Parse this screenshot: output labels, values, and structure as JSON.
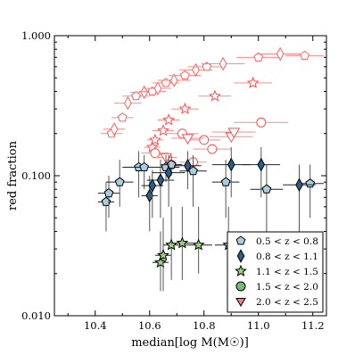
{
  "chart_data": {
    "type": "scatter",
    "title": "",
    "xlabel": "median[log M(M☉)]",
    "ylabel": "red fraction",
    "xlim": [
      10.25,
      11.25
    ],
    "ylim": [
      0.01,
      1.0
    ],
    "yscale": "log",
    "grid": false,
    "legend_position": "bottom-right",
    "x_ticks": [
      "10.4",
      "10.6",
      "10.8",
      "11.0",
      "11.2"
    ],
    "x_tick_values": [
      10.4,
      10.6,
      10.8,
      11.0,
      11.2
    ],
    "y_ticks": [
      "0.010",
      "0.100",
      "1.000"
    ],
    "y_tick_values": [
      0.01,
      0.1,
      1.0
    ],
    "background_series": {
      "color": "#ff6060",
      "points": [
        {
          "x": 10.46,
          "y": 0.2,
          "xerr": 0.04
        },
        {
          "x": 10.47,
          "y": 0.215,
          "xerr": 0.04
        },
        {
          "x": 10.5,
          "y": 0.26,
          "xerr": 0.04
        },
        {
          "x": 10.52,
          "y": 0.33,
          "xerr": 0.05
        },
        {
          "x": 10.55,
          "y": 0.37,
          "xerr": 0.05
        },
        {
          "x": 10.58,
          "y": 0.395,
          "xerr": 0.05
        },
        {
          "x": 10.61,
          "y": 0.4,
          "xerr": 0.05
        },
        {
          "x": 10.63,
          "y": 0.42,
          "xerr": 0.05
        },
        {
          "x": 10.66,
          "y": 0.46,
          "xerr": 0.05
        },
        {
          "x": 10.69,
          "y": 0.48,
          "xerr": 0.06
        },
        {
          "x": 10.73,
          "y": 0.52,
          "xerr": 0.06
        },
        {
          "x": 10.77,
          "y": 0.57,
          "xerr": 0.06
        },
        {
          "x": 10.81,
          "y": 0.6,
          "xerr": 0.07
        },
        {
          "x": 10.87,
          "y": 0.63,
          "xerr": 0.08
        },
        {
          "x": 11.0,
          "y": 0.7,
          "xerr": 0.08
        },
        {
          "x": 11.08,
          "y": 0.74,
          "xerr": 0.09
        },
        {
          "x": 11.17,
          "y": 0.72,
          "xerr": 0.07
        }
      ]
    },
    "series": [
      {
        "name": "0.5 < z < 0.8",
        "color": "#a8cce0",
        "marker": "pentagon",
        "points": [
          {
            "x": 10.44,
            "y": 0.065,
            "xerr": 0.03,
            "yerr_lo": 0.04,
            "yerr_hi": 0.09
          },
          {
            "x": 10.45,
            "y": 0.075,
            "xerr": 0.04,
            "yerr_lo": 0.05,
            "yerr_hi": 0.1
          },
          {
            "x": 10.49,
            "y": 0.09,
            "xerr": 0.05,
            "yerr_lo": 0.06,
            "yerr_hi": 0.13
          },
          {
            "x": 10.56,
            "y": 0.115,
            "xerr": 0.06,
            "yerr_lo": 0.07,
            "yerr_hi": 0.15
          },
          {
            "x": 10.58,
            "y": 0.115,
            "xerr": 0.04,
            "yerr_lo": 0.08,
            "yerr_hi": 0.14
          },
          {
            "x": 10.66,
            "y": 0.115,
            "xerr": 0.05,
            "yerr_lo": 0.09,
            "yerr_hi": 0.14
          },
          {
            "x": 10.68,
            "y": 0.12,
            "xerr": 0.04,
            "yerr_lo": 0.1,
            "yerr_hi": 0.14
          },
          {
            "x": 10.76,
            "y": 0.108,
            "xerr": 0.05,
            "yerr_lo": 0.06,
            "yerr_hi": 0.14
          },
          {
            "x": 10.88,
            "y": 0.09,
            "xerr": 0.05,
            "yerr_lo": 0.05,
            "yerr_hi": 0.13
          },
          {
            "x": 11.03,
            "y": 0.08,
            "xerr": 0.06,
            "yerr_lo": 0.04,
            "yerr_hi": 0.12
          },
          {
            "x": 11.19,
            "y": 0.088,
            "xerr": 0.05,
            "yerr_lo": 0.05,
            "yerr_hi": 0.12
          }
        ]
      },
      {
        "name": "0.8 < z < 1.1",
        "color": "#2a5f8a",
        "marker": "diamond",
        "points": [
          {
            "x": 10.6,
            "y": 0.072,
            "xerr": 0.03,
            "yerr_lo": 0.04,
            "yerr_hi": 0.1
          },
          {
            "x": 10.61,
            "y": 0.085,
            "xerr": 0.04,
            "yerr_lo": 0.05,
            "yerr_hi": 0.11
          },
          {
            "x": 10.64,
            "y": 0.093,
            "xerr": 0.05,
            "yerr_lo": 0.05,
            "yerr_hi": 0.13
          },
          {
            "x": 10.67,
            "y": 0.105,
            "xerr": 0.06,
            "yerr_lo": 0.06,
            "yerr_hi": 0.14
          },
          {
            "x": 10.74,
            "y": 0.118,
            "xerr": 0.05,
            "yerr_lo": 0.08,
            "yerr_hi": 0.15
          },
          {
            "x": 10.9,
            "y": 0.12,
            "xerr": 0.07,
            "yerr_lo": 0.07,
            "yerr_hi": 0.16
          },
          {
            "x": 11.01,
            "y": 0.12,
            "xerr": 0.07,
            "yerr_lo": 0.07,
            "yerr_hi": 0.16
          },
          {
            "x": 11.15,
            "y": 0.086,
            "xerr": 0.06,
            "yerr_lo": 0.04,
            "yerr_hi": 0.12
          }
        ]
      },
      {
        "name": "1.1 < z < 1.5",
        "color": "#9ad47a",
        "marker": "star",
        "points": [
          {
            "x": 10.64,
            "y": 0.024,
            "xerr": 0.03,
            "yerr_lo": 0.015,
            "yerr_hi": 0.04
          },
          {
            "x": 10.65,
            "y": 0.027,
            "xerr": 0.03,
            "yerr_lo": 0.015,
            "yerr_hi": 0.05
          },
          {
            "x": 10.68,
            "y": 0.032,
            "xerr": 0.03,
            "yerr_lo": 0.018,
            "yerr_hi": 0.06
          },
          {
            "x": 10.72,
            "y": 0.033,
            "xerr": 0.04,
            "yerr_lo": 0.018,
            "yerr_hi": 0.06
          },
          {
            "x": 10.78,
            "y": 0.032,
            "xerr": 0.05,
            "yerr_lo": 0.02,
            "yerr_hi": 0.06
          },
          {
            "x": 10.89,
            "y": 0.032,
            "xerr": 0.05,
            "yerr_lo": 0.02,
            "yerr_hi": 0.06
          }
        ]
      },
      {
        "name": "1.5 < z < 2.0",
        "color": "#7cb87a",
        "marker": "circle",
        "points": []
      },
      {
        "name": "2.0 < z < 2.5",
        "color": "#f08080",
        "marker": "triangle-down",
        "points": []
      }
    ],
    "red_highz_points": [
      {
        "marker": "star",
        "x": 10.61,
        "y": 0.16,
        "xerr": 0.03
      },
      {
        "marker": "star",
        "x": 10.62,
        "y": 0.18,
        "xerr": 0.03
      },
      {
        "marker": "star",
        "x": 10.65,
        "y": 0.21,
        "xerr": 0.04
      },
      {
        "marker": "star",
        "x": 10.67,
        "y": 0.25,
        "xerr": 0.04
      },
      {
        "marker": "star",
        "x": 10.73,
        "y": 0.3,
        "xerr": 0.05
      },
      {
        "marker": "star",
        "x": 10.84,
        "y": 0.37,
        "xerr": 0.06
      },
      {
        "marker": "star",
        "x": 10.98,
        "y": 0.46,
        "xerr": 0.07
      },
      {
        "marker": "circle",
        "x": 10.62,
        "y": 0.145,
        "xerr": 0.05
      },
      {
        "marker": "circle",
        "x": 10.68,
        "y": 0.12,
        "xerr": 0.04
      },
      {
        "marker": "circle",
        "x": 10.72,
        "y": 0.2,
        "xerr": 0.06
      },
      {
        "marker": "circle",
        "x": 10.76,
        "y": 0.125,
        "xerr": 0.05
      },
      {
        "marker": "circle",
        "x": 10.8,
        "y": 0.18,
        "xerr": 0.06
      },
      {
        "marker": "circle",
        "x": 10.83,
        "y": 0.155,
        "xerr": 0.07
      },
      {
        "marker": "circle",
        "x": 11.01,
        "y": 0.24,
        "xerr": 0.1
      },
      {
        "marker": "triangle-down",
        "x": 10.66,
        "y": 0.135,
        "xerr": 0.04
      },
      {
        "marker": "triangle-down",
        "x": 10.74,
        "y": 0.185,
        "xerr": 0.06
      },
      {
        "marker": "triangle-down",
        "x": 10.9,
        "y": 0.19,
        "xerr": 0.08
      },
      {
        "marker": "triangle-down",
        "x": 10.91,
        "y": 0.205,
        "xerr": 0.08
      }
    ]
  }
}
